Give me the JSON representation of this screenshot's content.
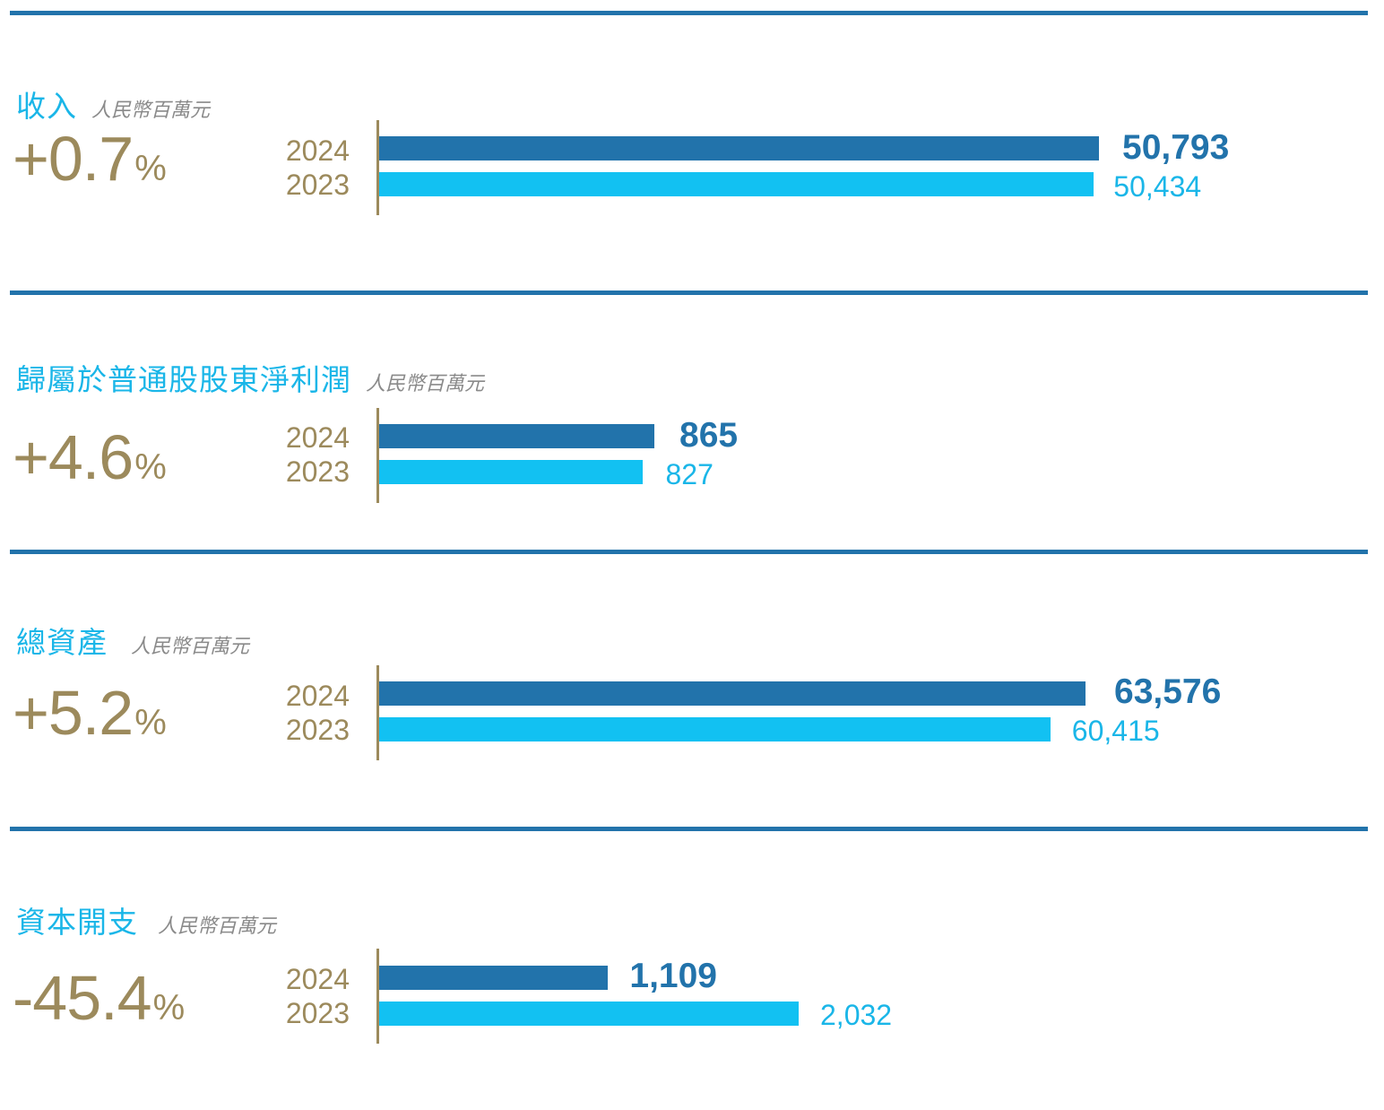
{
  "chart_data": [
    {
      "type": "bar",
      "title": "收入",
      "unit": "人民幣百萬元",
      "change": "+0.7",
      "change_unit": "%",
      "categories": [
        "2024",
        "2023"
      ],
      "values": [
        50793,
        50434
      ],
      "labels": [
        "50,793",
        "50,434"
      ],
      "colors": [
        "#2273ab",
        "#12c1f2"
      ]
    },
    {
      "type": "bar",
      "title": "歸屬於普通股股東淨利潤",
      "unit": "人民幣百萬元",
      "change": "+4.6",
      "change_unit": "%",
      "categories": [
        "2024",
        "2023"
      ],
      "values": [
        865,
        827
      ],
      "labels": [
        "865",
        "827"
      ],
      "colors": [
        "#2273ab",
        "#12c1f2"
      ]
    },
    {
      "type": "bar",
      "title": "總資產",
      "unit": "人民幣百萬元",
      "change": "+5.2",
      "change_unit": "%",
      "categories": [
        "2024",
        "2023"
      ],
      "values": [
        63576,
        60415
      ],
      "labels": [
        "63,576",
        "60,415"
      ],
      "colors": [
        "#2273ab",
        "#12c1f2"
      ]
    },
    {
      "type": "bar",
      "title": "資本開支",
      "unit": "人民幣百萬元",
      "change": "-45.4",
      "change_unit": "%",
      "categories": [
        "2024",
        "2023"
      ],
      "values": [
        1109,
        2032
      ],
      "labels": [
        "1,109",
        "2,032"
      ],
      "colors": [
        "#2273ab",
        "#12c1f2"
      ]
    }
  ]
}
